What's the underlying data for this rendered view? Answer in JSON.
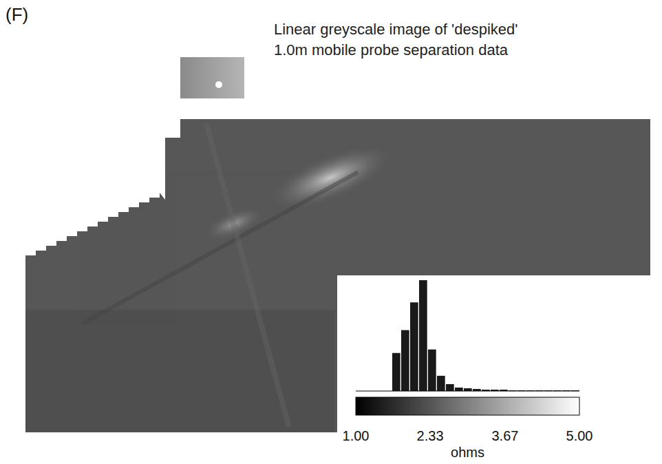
{
  "panel_label": "(F)",
  "title": [
    "Linear greyscale image of 'despiked'",
    "1.0m mobile probe separation data"
  ],
  "chart_data": {
    "type": "histogram",
    "bins": [
      1,
      1.16,
      1.32,
      1.48,
      1.64,
      1.8,
      1.96,
      2.12,
      2.28,
      2.44,
      2.6,
      2.76,
      2.92,
      3.08,
      3.24,
      3.4,
      3.56,
      3.72,
      3.88,
      4.04,
      4.2,
      4.36,
      4.52,
      4.68,
      4.84,
      5
    ],
    "counts": [
      0,
      0,
      0,
      0,
      55,
      88,
      128,
      160,
      60,
      22,
      10,
      5,
      4,
      3,
      2,
      2,
      2,
      1,
      1,
      1,
      1,
      1,
      1,
      1,
      1
    ],
    "xlim": [
      1,
      5
    ],
    "ylim": [
      0,
      165
    ],
    "color": "#1a1a1a",
    "tick_labels": false,
    "colorbar": {
      "range": [
        1,
        5
      ],
      "ticks": [
        {
          "value": 1,
          "label": "1.00"
        },
        {
          "value": 2.33,
          "label": "2.33"
        },
        {
          "value": 3.67,
          "label": "3.67"
        },
        {
          "value": 5,
          "label": "5.00"
        }
      ],
      "label": "ohms"
    }
  }
}
